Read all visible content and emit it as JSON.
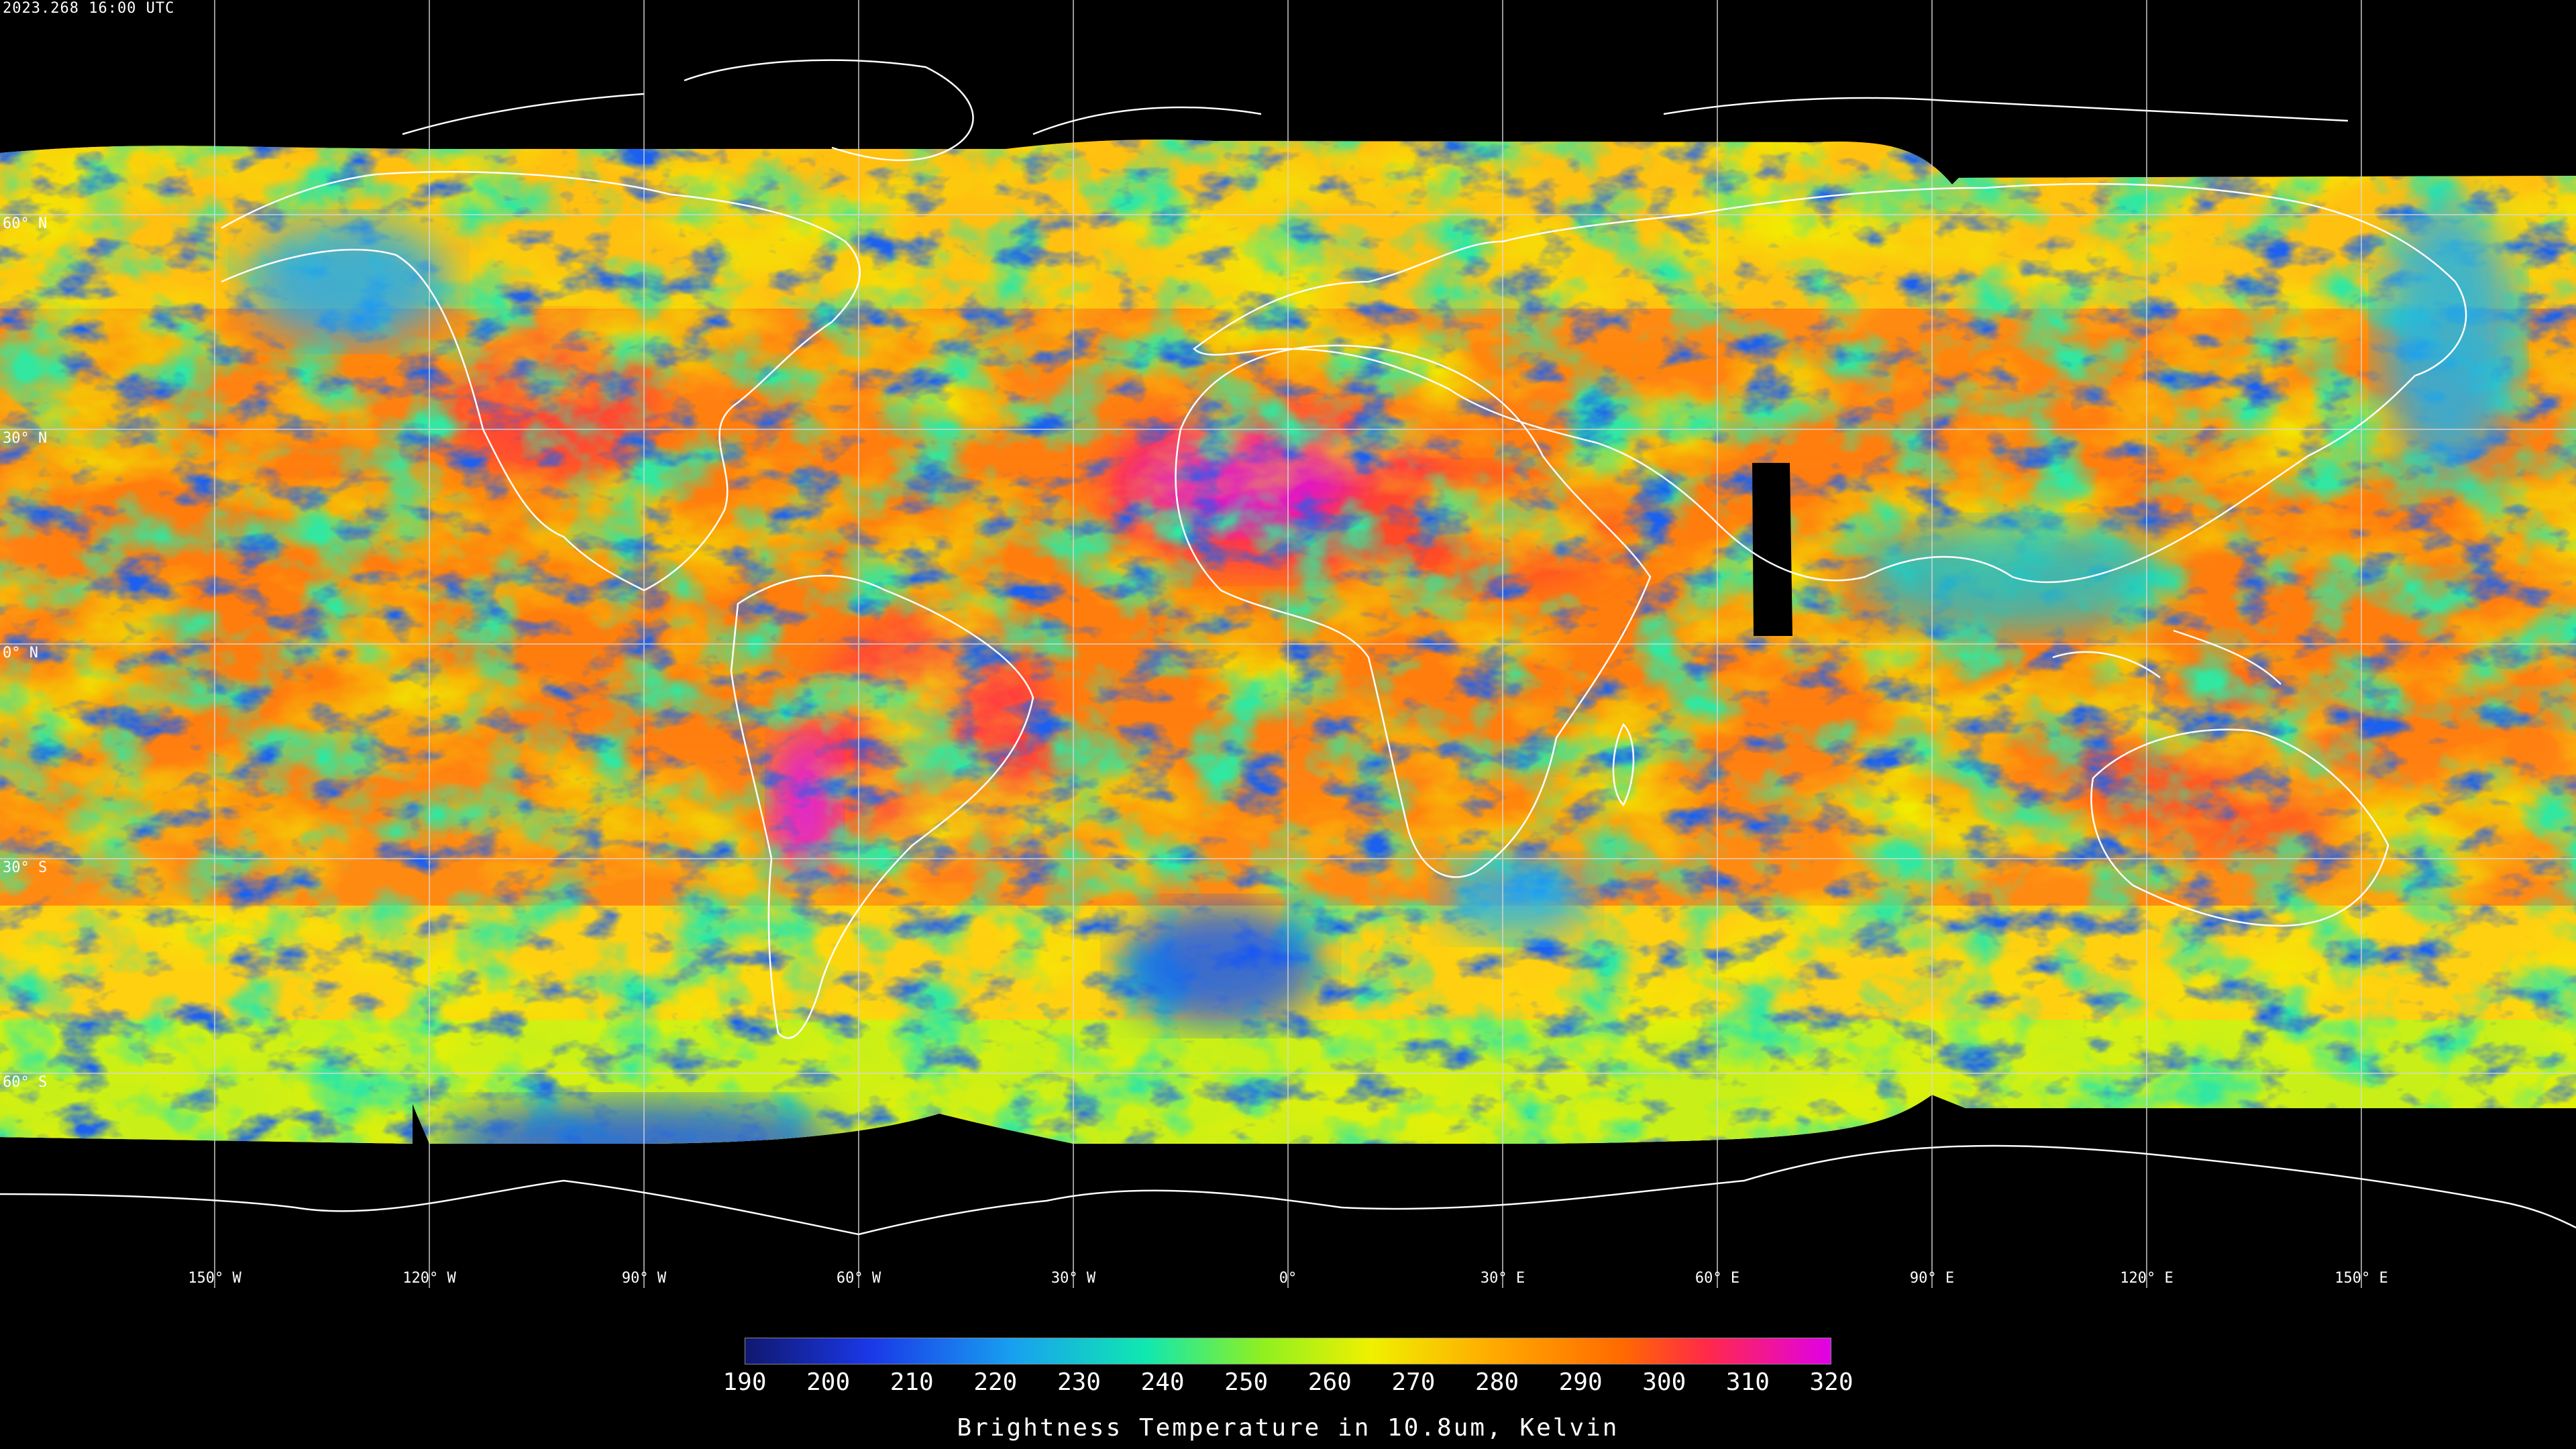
{
  "timestamp": "2023.268 16:00 UTC",
  "colorbar": {
    "title": "Brightness Temperature in 10.8um, Kelvin",
    "ticks": [
      "190",
      "200",
      "210",
      "220",
      "230",
      "240",
      "250",
      "260",
      "270",
      "280",
      "290",
      "300",
      "310",
      "320"
    ],
    "range_kelvin": [
      190,
      320
    ],
    "stops": [
      {
        "k": 190,
        "c": "#101870"
      },
      {
        "k": 205,
        "c": "#1a38e8"
      },
      {
        "k": 222,
        "c": "#18a0f0"
      },
      {
        "k": 238,
        "c": "#10e8b0"
      },
      {
        "k": 252,
        "c": "#90f020"
      },
      {
        "k": 265,
        "c": "#f0f000"
      },
      {
        "k": 280,
        "c": "#ffa800"
      },
      {
        "k": 295,
        "c": "#ff6a00"
      },
      {
        "k": 305,
        "c": "#ff2a48"
      },
      {
        "k": 320,
        "c": "#e000e8"
      }
    ]
  },
  "map": {
    "longitude_labels": [
      "150° W",
      "120° W",
      "90° W",
      "60° W",
      "30° W",
      "0°",
      "30° E",
      "60° E",
      "90° E",
      "120° E",
      "150° E"
    ],
    "latitude_labels": [
      "60° N",
      "30° N",
      "0° N",
      "30° S",
      "60° S"
    ],
    "colors": {
      "background": "#000000",
      "grid": "#d8d8d8",
      "coastline": "#ffffff"
    }
  }
}
